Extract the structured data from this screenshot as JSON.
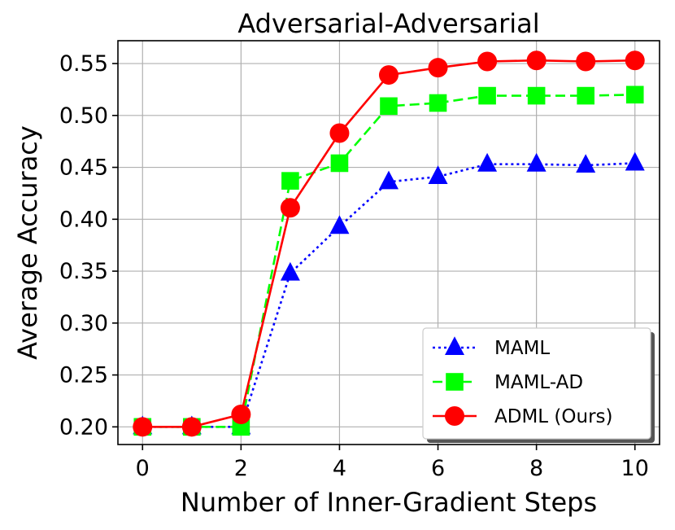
{
  "chart_data": {
    "type": "line",
    "title": "Adversarial-Adversarial",
    "xlabel": "Number of Inner-Gradient Steps",
    "ylabel": "Average Accuracy",
    "xlim": [
      -0.5,
      10.5
    ],
    "ylim": [
      0.183,
      0.572
    ],
    "xticks": [
      0,
      2,
      4,
      6,
      8,
      10
    ],
    "xtick_labels": [
      "0",
      "2",
      "4",
      "6",
      "8",
      "10"
    ],
    "yticks": [
      0.2,
      0.25,
      0.3,
      0.35,
      0.4,
      0.45,
      0.5,
      0.55
    ],
    "ytick_labels": [
      "0.20",
      "0.25",
      "0.30",
      "0.35",
      "0.40",
      "0.45",
      "0.50",
      "0.55"
    ],
    "grid": true,
    "legend_position": "lower-right",
    "x": [
      0,
      1,
      2,
      3,
      4,
      5,
      6,
      7,
      8,
      9,
      10
    ],
    "series": [
      {
        "name": "MAML",
        "values": [
          0.2,
          0.2,
          0.2,
          0.348,
          0.393,
          0.436,
          0.441,
          0.453,
          0.453,
          0.452,
          0.454
        ],
        "color": "#0000ff",
        "marker": "triangle",
        "line_style": "dotted"
      },
      {
        "name": "MAML-AD",
        "values": [
          0.2,
          0.2,
          0.2,
          0.437,
          0.454,
          0.509,
          0.512,
          0.519,
          0.519,
          0.519,
          0.52
        ],
        "color": "#00ff00",
        "marker": "square",
        "line_style": "dashed"
      },
      {
        "name": "ADML (Ours)",
        "values": [
          0.2,
          0.2,
          0.212,
          0.411,
          0.483,
          0.539,
          0.546,
          0.552,
          0.553,
          0.552,
          0.553
        ],
        "color": "#ff0000",
        "marker": "circle",
        "line_style": "solid"
      }
    ]
  }
}
